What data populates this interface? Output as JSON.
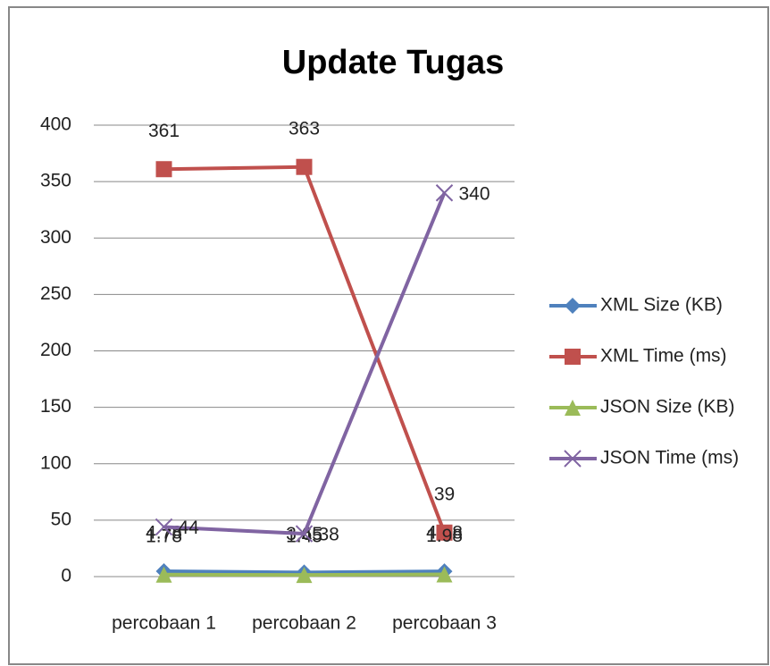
{
  "chart_data": {
    "type": "line",
    "title": "Update Tugas",
    "categories": [
      "percobaan 1",
      "percobaan 2",
      "percobaan 3"
    ],
    "series": [
      {
        "name": "XML Size (KB)",
        "color": "#4f81bd",
        "marker": "diamond",
        "values": [
          4.78,
          3.65,
          4.68
        ]
      },
      {
        "name": "XML Time (ms)",
        "color": "#c0504d",
        "marker": "square",
        "values": [
          361,
          363,
          39
        ]
      },
      {
        "name": "JSON Size (KB)",
        "color": "#9bbb59",
        "marker": "triangle",
        "values": [
          1.78,
          1.45,
          1.98
        ]
      },
      {
        "name": "JSON Time (ms)",
        "color": "#8064a2",
        "marker": "x",
        "values": [
          44,
          38,
          340
        ]
      }
    ],
    "ylim": [
      0,
      400
    ],
    "yticks": [
      0,
      50,
      100,
      150,
      200,
      250,
      300,
      350,
      400
    ],
    "grid": true,
    "legend": "right",
    "data_labels": true
  }
}
